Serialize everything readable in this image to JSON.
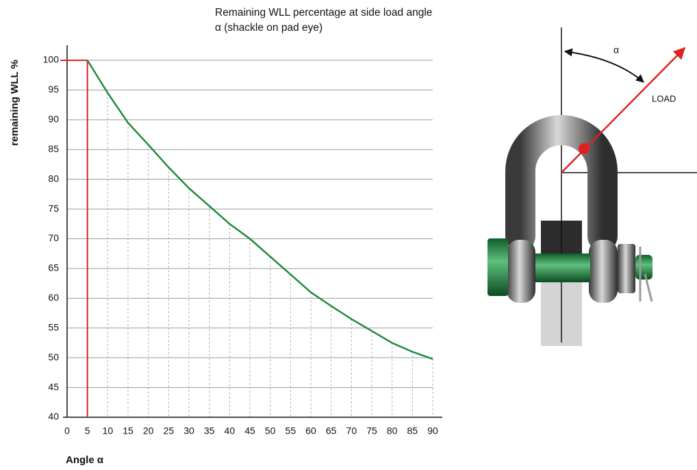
{
  "chart_data": {
    "type": "line",
    "title": "Remaining WLL percentage at side load angle α (shackle on pad eye)",
    "x_label": "Angle α",
    "y_label": "remaining WLL %",
    "x": [
      0,
      5,
      10,
      15,
      20,
      25,
      30,
      35,
      40,
      45,
      50,
      55,
      60,
      65,
      70,
      75,
      80,
      85,
      90
    ],
    "series": [
      {
        "name": "remaining WLL",
        "color": "#1e8a3a",
        "values": [
          null,
          100,
          94.5,
          89.5,
          85.8,
          82,
          78.5,
          75.5,
          72.5,
          70,
          67,
          64,
          61,
          58.7,
          56.5,
          54.5,
          52.5,
          51,
          49.8
        ]
      }
    ],
    "xlim": [
      0,
      90
    ],
    "xticks": [
      0,
      5,
      10,
      15,
      20,
      25,
      30,
      35,
      40,
      45,
      50,
      55,
      60,
      65,
      70,
      75,
      80,
      85,
      90
    ],
    "ylim": [
      40,
      100
    ],
    "yticks": [
      40,
      45,
      50,
      55,
      60,
      65,
      70,
      75,
      80,
      85,
      90,
      95,
      100
    ],
    "grid": true,
    "highlight": {
      "x": 5,
      "y": 100,
      "color": "#e02020"
    }
  },
  "illustration": {
    "angle_label": "α",
    "load_label": "LOAD"
  }
}
